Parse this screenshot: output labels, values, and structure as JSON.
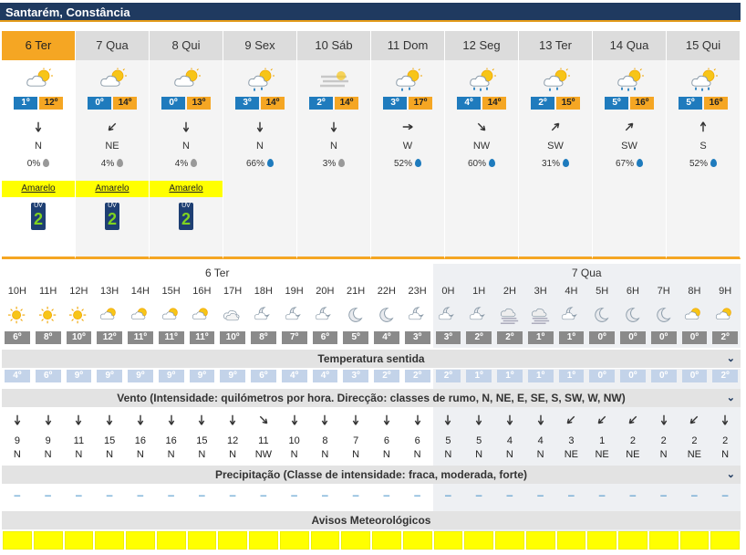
{
  "title": "Santarém, Constância",
  "colors": {
    "accent": "#f5a623",
    "header": "#1f3a60",
    "min_temp": "#1f7bbd",
    "warning": "#ffff00"
  },
  "days": [
    {
      "label": "6 Ter",
      "icon": "partly-cloudy-icon",
      "tmin": "1º",
      "tmax": "12º",
      "wind_dir": "N",
      "wind_angle": 0,
      "precip": "0%",
      "drop": "gray",
      "warning": "Amarelo",
      "uv": "2",
      "selected": true
    },
    {
      "label": "7 Qua",
      "icon": "partly-cloudy-icon",
      "tmin": "0º",
      "tmax": "14º",
      "wind_dir": "NE",
      "wind_angle": 45,
      "precip": "4%",
      "drop": "gray",
      "warning": "Amarelo",
      "uv": "2"
    },
    {
      "label": "8 Qui",
      "icon": "partly-cloudy-icon",
      "tmin": "0º",
      "tmax": "13º",
      "wind_dir": "N",
      "wind_angle": 0,
      "precip": "4%",
      "drop": "gray",
      "warning": "Amarelo",
      "uv": "2"
    },
    {
      "label": "9 Sex",
      "icon": "cloud-rain-icon",
      "tmin": "3º",
      "tmax": "14º",
      "wind_dir": "N",
      "wind_angle": 0,
      "precip": "66%",
      "drop": "blue"
    },
    {
      "label": "10 Sáb",
      "icon": "fog-icon",
      "tmin": "2º",
      "tmax": "14º",
      "wind_dir": "N",
      "wind_angle": 0,
      "precip": "3%",
      "drop": "gray"
    },
    {
      "label": "11 Dom",
      "icon": "cloud-rain-icon",
      "tmin": "3º",
      "tmax": "17º",
      "wind_dir": "W",
      "wind_angle": 270,
      "precip": "52%",
      "drop": "blue"
    },
    {
      "label": "12 Seg",
      "icon": "cloud-heavy-rain-icon",
      "tmin": "4º",
      "tmax": "14º",
      "wind_dir": "NW",
      "wind_angle": 315,
      "precip": "60%",
      "drop": "blue"
    },
    {
      "label": "13 Ter",
      "icon": "cloud-rain-icon",
      "tmin": "2º",
      "tmax": "15º",
      "wind_dir": "SW",
      "wind_angle": 225,
      "precip": "31%",
      "drop": "blue"
    },
    {
      "label": "14 Qua",
      "icon": "cloud-heavy-rain-icon",
      "tmin": "5º",
      "tmax": "16º",
      "wind_dir": "SW",
      "wind_angle": 225,
      "precip": "67%",
      "drop": "blue"
    },
    {
      "label": "15 Qui",
      "icon": "cloud-heavy-rain-icon",
      "tmin": "5º",
      "tmax": "16º",
      "wind_dir": "S",
      "wind_angle": 180,
      "precip": "52%",
      "drop": "blue"
    }
  ],
  "hourly_day_labels": {
    "first": "6 Ter",
    "second": "7 Qua"
  },
  "hours": [
    "10H",
    "11H",
    "12H",
    "13H",
    "14H",
    "15H",
    "16H",
    "17H",
    "18H",
    "19H",
    "20H",
    "21H",
    "22H",
    "23H",
    "0H",
    "1H",
    "2H",
    "3H",
    "4H",
    "5H",
    "6H",
    "7H",
    "8H",
    "9H"
  ],
  "hour_icons": [
    "sun-icon",
    "sun-icon",
    "sun-icon",
    "sun-cloud-icon",
    "sun-cloud-icon",
    "sun-cloud-icon",
    "sun-cloud-icon",
    "cloud-icon",
    "moon-cloud-icon",
    "moon-cloud-icon",
    "moon-cloud-icon",
    "moon-icon",
    "moon-icon",
    "moon-cloud-icon",
    "moon-cloud-icon",
    "moon-cloud-icon",
    "fog-icon",
    "fog-icon",
    "moon-cloud-icon",
    "moon-icon",
    "moon-icon",
    "moon-icon",
    "sun-cloud-icon",
    "sun-cloud-icon"
  ],
  "hour_temps": [
    "6º",
    "8º",
    "10º",
    "12º",
    "11º",
    "11º",
    "11º",
    "10º",
    "8º",
    "7º",
    "6º",
    "5º",
    "4º",
    "3º",
    "3º",
    "2º",
    "2º",
    "1º",
    "1º",
    "0º",
    "0º",
    "0º",
    "0º",
    "2º"
  ],
  "sections": {
    "feels": "Temperatura sentida",
    "wind": "Vento (Intensidade: quilómetros por hora. Direcção: classes de rumo, N, NE, E, SE, S, SW, W, NW)",
    "precip": "Precipitação (Classe de intensidade: fraca, moderada, forte)",
    "warnings": "Avisos Meteorológicos",
    "chevron": "⌄"
  },
  "feels_temps": [
    "4º",
    "6º",
    "9º",
    "9º",
    "9º",
    "9º",
    "9º",
    "9º",
    "6º",
    "4º",
    "4º",
    "3º",
    "2º",
    "2º",
    "2º",
    "1º",
    "1º",
    "1º",
    "1º",
    "0º",
    "0º",
    "0º",
    "0º",
    "2º"
  ],
  "wind_speeds": [
    "9",
    "9",
    "11",
    "15",
    "16",
    "16",
    "15",
    "12",
    "11",
    "10",
    "8",
    "7",
    "6",
    "6",
    "5",
    "5",
    "4",
    "4",
    "3",
    "1",
    "2",
    "2",
    "2",
    "2"
  ],
  "wind_dirs": [
    "N",
    "N",
    "N",
    "N",
    "N",
    "N",
    "N",
    "N",
    "NW",
    "N",
    "N",
    "N",
    "N",
    "N",
    "N",
    "N",
    "N",
    "N",
    "NE",
    "NE",
    "NE",
    "N",
    "NE",
    "N"
  ],
  "precip_values": [
    "–",
    "–",
    "–",
    "–",
    "–",
    "–",
    "–",
    "–",
    "–",
    "–",
    "–",
    "–",
    "–",
    "–",
    "–",
    "–",
    "–",
    "–",
    "–",
    "–",
    "–",
    "–",
    "–",
    "–"
  ]
}
